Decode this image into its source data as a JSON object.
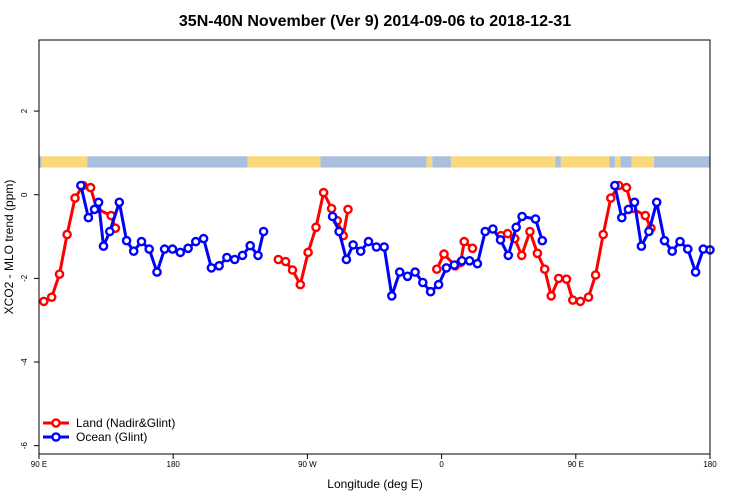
{
  "chart_data": {
    "type": "line",
    "title": "35N-40N November (Ver 9)   2014-09-06 to 2018-12-31",
    "xlabel": "Longitude (deg E)",
    "ylabel": "XCO2 - MLO trend (ppm)",
    "xlim": [
      90,
      450
    ],
    "ylim": [
      -6.2,
      3.7
    ],
    "x_ticks": [
      {
        "value": 90,
        "label": "90 E"
      },
      {
        "value": 162,
        "label": "180"
      },
      {
        "value": 234,
        "label": "90 W"
      },
      {
        "value": 306,
        "label": "0"
      },
      {
        "value": 378,
        "label": "90 E"
      },
      {
        "value": 450,
        "label": "180"
      }
    ],
    "y_ticks": [
      -6,
      -4,
      -2,
      0,
      2
    ],
    "grid": false,
    "legend_position": "bottom-left",
    "land_mask_strip": {
      "y_range": [
        0.65,
        0.92
      ],
      "ocean_color": "#a9bfdd",
      "land_color": "#f9d97a",
      "segments": [
        {
          "kind": "ocean",
          "x": [
            90,
            91.5
          ]
        },
        {
          "kind": "land",
          "x": [
            91.5,
            116
          ]
        },
        {
          "kind": "ocean",
          "x": [
            116,
            202
          ]
        },
        {
          "kind": "land",
          "x": [
            202,
            241
          ]
        },
        {
          "kind": "ocean",
          "x": [
            241,
            298
          ]
        },
        {
          "kind": "land",
          "x": [
            298,
            301
          ]
        },
        {
          "kind": "ocean",
          "x": [
            301,
            311
          ]
        },
        {
          "kind": "land",
          "x": [
            311,
            367
          ]
        },
        {
          "kind": "ocean",
          "x": [
            367,
            370
          ]
        },
        {
          "kind": "land",
          "x": [
            370,
            396
          ]
        },
        {
          "kind": "ocean",
          "x": [
            396,
            399
          ]
        },
        {
          "kind": "land",
          "x": [
            399,
            402
          ]
        },
        {
          "kind": "ocean",
          "x": [
            402,
            408
          ]
        },
        {
          "kind": "land",
          "x": [
            408,
            420
          ]
        },
        {
          "kind": "ocean",
          "x": [
            420,
            450
          ]
        }
      ]
    },
    "series": [
      {
        "name": "Land (Nadir&Glint)",
        "color": "#ff0000",
        "points": [
          [
            92.6,
            -2.55
          ],
          [
            96.8,
            -2.45
          ],
          [
            101,
            -1.9
          ],
          [
            105.1,
            -0.95
          ],
          [
            109.3,
            -0.08
          ],
          [
            113.6,
            0.22
          ],
          [
            117.7,
            0.17
          ],
          [
            120.9,
            -0.33
          ],
          [
            128.7,
            -0.5
          ],
          [
            131,
            -0.8
          ],
          [
            218.4,
            -1.55
          ],
          [
            222.3,
            -1.6
          ],
          [
            226,
            -1.8
          ],
          [
            230.2,
            -2.15
          ],
          [
            234.4,
            -1.38
          ],
          [
            238.6,
            -0.78
          ],
          [
            242.7,
            0.05
          ],
          [
            247,
            -0.33
          ],
          [
            250,
            -0.62
          ],
          [
            253.2,
            -0.98
          ],
          [
            255.8,
            -0.35
          ],
          [
            303.4,
            -1.78
          ],
          [
            307.3,
            -1.42
          ],
          [
            313.3,
            -1.7
          ],
          [
            316.2,
            -1.62
          ],
          [
            318.1,
            -1.12
          ],
          [
            322.6,
            -1.28
          ],
          [
            337.8,
            -0.98
          ],
          [
            341.4,
            -0.93
          ],
          [
            345.2,
            -1.05
          ],
          [
            349,
            -1.45
          ],
          [
            353.4,
            -0.88
          ],
          [
            357.4,
            -1.4
          ],
          [
            361.3,
            -1.78
          ],
          [
            364.8,
            -2.42
          ],
          [
            368.8,
            -2.0
          ],
          [
            373,
            -2.02
          ],
          [
            376.4,
            -2.52
          ],
          [
            380.4,
            -2.55
          ],
          [
            384.8,
            -2.45
          ],
          [
            388.6,
            -1.92
          ],
          [
            392.7,
            -0.95
          ],
          [
            396.8,
            -0.08
          ],
          [
            401,
            0.22
          ],
          [
            405.2,
            0.17
          ],
          [
            408.3,
            -0.33
          ],
          [
            415.3,
            -0.5
          ],
          [
            418.3,
            -0.8
          ]
        ]
      },
      {
        "name": "Ocean (Glint)",
        "color": "#0000ff",
        "points": [
          [
            112.5,
            0.22
          ],
          [
            116.5,
            -0.55
          ],
          [
            119.8,
            -0.35
          ],
          [
            122,
            -0.18
          ],
          [
            124.6,
            -1.23
          ],
          [
            128,
            -0.88
          ],
          [
            133.1,
            -0.18
          ],
          [
            137,
            -1.1
          ],
          [
            140.8,
            -1.35
          ],
          [
            145,
            -1.12
          ],
          [
            149.1,
            -1.3
          ],
          [
            153.3,
            -1.85
          ],
          [
            157.4,
            -1.3
          ],
          [
            161.6,
            -1.3
          ],
          [
            165.8,
            -1.38
          ],
          [
            170,
            -1.28
          ],
          [
            174.1,
            -1.12
          ],
          [
            178.3,
            -1.05
          ],
          [
            182.5,
            -1.75
          ],
          [
            186.6,
            -1.7
          ],
          [
            190.8,
            -1.5
          ],
          [
            195,
            -1.55
          ],
          [
            199.2,
            -1.45
          ],
          [
            203.3,
            -1.22
          ],
          [
            207.5,
            -1.45
          ],
          [
            210.5,
            -0.88
          ],
          [
            247.5,
            -0.52
          ],
          [
            251,
            -0.88
          ],
          [
            254.9,
            -1.55
          ],
          [
            258.5,
            -1.2
          ],
          [
            262.6,
            -1.35
          ],
          [
            266.8,
            -1.12
          ],
          [
            271,
            -1.25
          ],
          [
            275.2,
            -1.25
          ],
          [
            279.3,
            -2.42
          ],
          [
            283.5,
            -1.85
          ],
          [
            287.7,
            -1.95
          ],
          [
            291.8,
            -1.85
          ],
          [
            295.9,
            -2.1
          ],
          [
            300.1,
            -2.32
          ],
          [
            304.4,
            -2.15
          ],
          [
            308.6,
            -1.75
          ],
          [
            312.8,
            -1.68
          ],
          [
            316.9,
            -1.58
          ],
          [
            321,
            -1.58
          ],
          [
            325.2,
            -1.65
          ],
          [
            329.4,
            -0.88
          ],
          [
            333.5,
            -0.82
          ],
          [
            337.6,
            -1.08
          ],
          [
            341.8,
            -1.45
          ],
          [
            346,
            -0.78
          ],
          [
            349.2,
            -0.52
          ],
          [
            356.4,
            -0.58
          ],
          [
            360,
            -1.1
          ],
          [
            398.9,
            0.22
          ],
          [
            402.7,
            -0.55
          ],
          [
            406.2,
            -0.35
          ],
          [
            409.5,
            -0.18
          ],
          [
            413.2,
            -1.23
          ],
          [
            417.2,
            -0.88
          ],
          [
            421.4,
            -0.18
          ],
          [
            425.6,
            -1.1
          ],
          [
            429.7,
            -1.35
          ],
          [
            433.9,
            -1.12
          ],
          [
            438.1,
            -1.3
          ],
          [
            442.3,
            -1.85
          ],
          [
            446.4,
            -1.3
          ],
          [
            450,
            -1.32
          ]
        ]
      }
    ]
  }
}
